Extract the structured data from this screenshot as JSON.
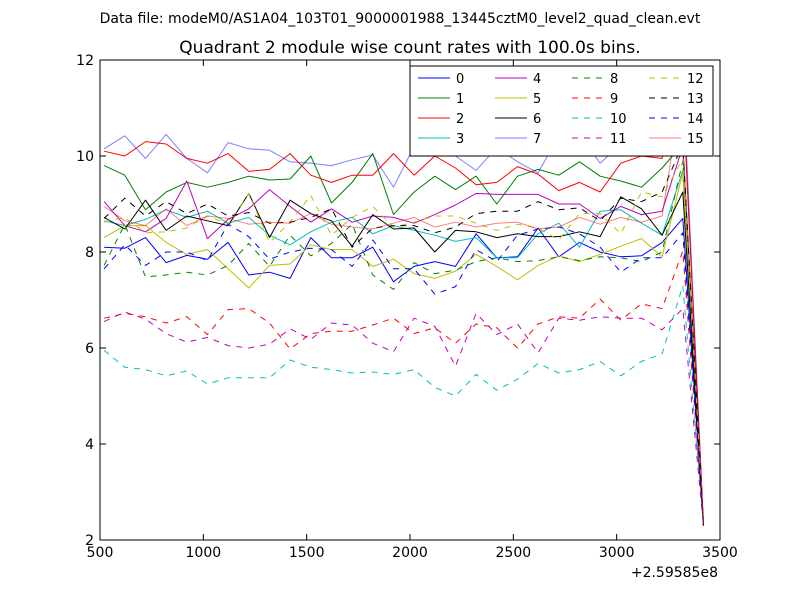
{
  "header": {
    "datafile": "Data file: modeM0/AS1A04_103T01_9000001988_13445cztM0_level2_quad_clean.evt"
  },
  "chart_data": {
    "type": "line",
    "title": "Quadrant 2 module wise count rates with 100.0s bins.",
    "xlabel": "",
    "ylabel": "",
    "x_offset_label": "+2.59585e8",
    "xlim": [
      500,
      3500
    ],
    "ylim": [
      2,
      12
    ],
    "xticks": [
      500,
      1000,
      1500,
      2000,
      2500,
      3000,
      3500
    ],
    "xtick_labels": [
      "500",
      "1000",
      "1500",
      "2000",
      "2500",
      "3000",
      "3500"
    ],
    "yticks": [
      2,
      4,
      6,
      8,
      10,
      12
    ],
    "ytick_labels": [
      "2",
      "4",
      "6",
      "8",
      "10",
      "12"
    ],
    "grid": false,
    "legend_position": "top-right",
    "legend_columns": 4,
    "x": [
      520,
      620,
      720,
      820,
      920,
      1020,
      1120,
      1220,
      1320,
      1420,
      1520,
      1620,
      1720,
      1820,
      1920,
      2020,
      2120,
      2220,
      2320,
      2420,
      2520,
      2620,
      2720,
      2820,
      2920,
      3020,
      3120,
      3220,
      3320,
      3420
    ],
    "series": [
      {
        "name": "0",
        "color": "#0000ff",
        "dash": "solid",
        "values": [
          8.1,
          8.08,
          8.3,
          7.78,
          7.93,
          7.85,
          8.2,
          7.52,
          7.58,
          7.45,
          8.3,
          7.88,
          7.88,
          8.1,
          7.38,
          7.7,
          7.8,
          7.7,
          8.38,
          7.88,
          7.9,
          8.5,
          7.9,
          8.2,
          8.0,
          7.9,
          7.92,
          8.2,
          8.7,
          2.3
        ]
      },
      {
        "name": "1",
        "color": "#008000",
        "dash": "solid",
        "values": [
          9.8,
          9.6,
          8.88,
          9.25,
          9.45,
          9.35,
          9.45,
          9.58,
          9.5,
          9.52,
          10.0,
          9.02,
          9.45,
          10.05,
          8.78,
          9.25,
          9.58,
          9.3,
          9.58,
          9.0,
          9.58,
          9.72,
          9.6,
          9.88,
          9.58,
          9.48,
          9.35,
          9.75,
          10.25,
          2.3
        ]
      },
      {
        "name": "2",
        "color": "#ff0000",
        "dash": "solid",
        "values": [
          10.1,
          10.0,
          10.3,
          10.25,
          9.95,
          9.85,
          10.05,
          9.68,
          9.72,
          10.05,
          9.6,
          9.45,
          9.6,
          9.6,
          10.05,
          9.6,
          10.0,
          9.75,
          9.4,
          9.45,
          9.78,
          9.62,
          9.28,
          9.45,
          9.25,
          9.85,
          10.0,
          9.95,
          11.35,
          2.3
        ]
      },
      {
        "name": "3",
        "color": "#00bfbf",
        "dash": "solid",
        "values": [
          8.65,
          8.55,
          8.68,
          8.88,
          8.72,
          8.85,
          8.6,
          8.72,
          8.35,
          8.15,
          8.42,
          8.62,
          8.72,
          8.38,
          8.55,
          8.45,
          8.35,
          8.22,
          8.3,
          7.88,
          7.88,
          8.38,
          8.6,
          8.1,
          8.85,
          8.88,
          8.6,
          8.35,
          9.7,
          2.3
        ]
      },
      {
        "name": "4",
        "color": "#bf00bf",
        "dash": "solid",
        "values": [
          9.05,
          8.55,
          8.42,
          8.7,
          9.48,
          8.28,
          8.68,
          8.9,
          9.3,
          8.95,
          8.62,
          8.9,
          8.62,
          8.75,
          8.72,
          8.6,
          8.78,
          8.98,
          9.22,
          9.2,
          9.2,
          9.2,
          9.0,
          9.0,
          8.7,
          8.95,
          8.78,
          8.85,
          10.2,
          2.3
        ]
      },
      {
        "name": "5",
        "color": "#bfbf00",
        "dash": "solid",
        "values": [
          8.3,
          8.55,
          8.55,
          8.2,
          7.95,
          8.05,
          7.65,
          7.25,
          7.72,
          7.75,
          8.15,
          8.05,
          8.05,
          7.7,
          7.85,
          7.55,
          7.45,
          7.6,
          7.95,
          7.7,
          7.42,
          7.72,
          7.92,
          7.8,
          7.95,
          8.12,
          8.28,
          7.9,
          9.65,
          2.3
        ]
      },
      {
        "name": "6",
        "color": "#000000",
        "dash": "solid",
        "values": [
          8.72,
          8.48,
          9.08,
          8.45,
          8.75,
          8.65,
          8.55,
          9.22,
          8.3,
          9.08,
          8.8,
          8.65,
          8.12,
          8.78,
          8.48,
          8.5,
          8.0,
          8.45,
          8.42,
          8.3,
          8.38,
          8.32,
          8.32,
          8.42,
          8.32,
          9.15,
          8.9,
          8.35,
          9.25,
          2.3
        ]
      },
      {
        "name": "7",
        "color": "#0000ff",
        "dash": "solid",
        "alpha": 0.5,
        "values": [
          10.15,
          10.42,
          9.95,
          10.45,
          9.95,
          9.65,
          10.28,
          10.15,
          10.12,
          9.88,
          9.85,
          9.8,
          9.92,
          10.02,
          9.35,
          10.2,
          10.0,
          10.0,
          9.7,
          10.18,
          9.88,
          9.65,
          10.42,
          10.45,
          9.85,
          10.25,
          10.0,
          10.55,
          11.75,
          2.3
        ]
      },
      {
        "name": "8",
        "color": "#008000",
        "dash": "dashed",
        "values": [
          7.72,
          8.58,
          7.48,
          7.52,
          7.58,
          7.52,
          7.72,
          8.18,
          7.7,
          8.35,
          7.92,
          8.18,
          8.58,
          7.52,
          7.22,
          7.78,
          7.55,
          7.62,
          7.8,
          7.88,
          7.8,
          7.82,
          7.9,
          7.82,
          7.9,
          7.88,
          7.8,
          8.0,
          9.9,
          2.3
        ]
      },
      {
        "name": "9",
        "color": "#ff0000",
        "dash": "dashed",
        "values": [
          6.62,
          6.72,
          6.65,
          6.52,
          6.65,
          6.28,
          6.8,
          6.82,
          6.52,
          5.98,
          6.3,
          6.35,
          6.35,
          6.48,
          6.62,
          6.3,
          6.42,
          6.1,
          6.5,
          6.42,
          6.0,
          6.5,
          6.65,
          6.62,
          7.02,
          6.58,
          6.92,
          6.82,
          8.02,
          2.3
        ]
      },
      {
        "name": "10",
        "color": "#00bfbf",
        "dash": "dashed",
        "values": [
          5.95,
          5.6,
          5.55,
          5.42,
          5.52,
          5.25,
          5.38,
          5.38,
          5.38,
          5.75,
          5.6,
          5.55,
          5.48,
          5.5,
          5.45,
          5.55,
          5.18,
          5.0,
          5.45,
          5.12,
          5.35,
          5.68,
          5.48,
          5.55,
          5.72,
          5.42,
          5.72,
          5.88,
          7.3,
          2.3
        ]
      },
      {
        "name": "11",
        "color": "#bf00bf",
        "dash": "dashed",
        "values": [
          6.55,
          6.75,
          6.6,
          6.3,
          6.12,
          6.22,
          6.05,
          6.0,
          6.08,
          6.4,
          6.18,
          6.52,
          6.48,
          6.1,
          5.92,
          6.62,
          6.45,
          5.62,
          6.72,
          6.28,
          6.5,
          5.9,
          6.62,
          6.58,
          6.65,
          6.62,
          6.62,
          6.38,
          6.82,
          2.3
        ]
      },
      {
        "name": "12",
        "color": "#bfbf00",
        "dash": "dashed",
        "values": [
          8.62,
          8.72,
          8.4,
          8.42,
          8.5,
          8.75,
          8.58,
          9.22,
          8.2,
          8.62,
          9.18,
          8.35,
          8.72,
          8.95,
          8.52,
          8.62,
          8.75,
          8.75,
          8.6,
          8.45,
          8.58,
          8.5,
          8.25,
          8.8,
          8.8,
          8.38,
          9.25,
          9.15,
          9.95,
          2.3
        ]
      },
      {
        "name": "13",
        "color": "#000000",
        "dash": "dashed",
        "values": [
          8.7,
          9.12,
          8.75,
          9.05,
          8.8,
          9.0,
          8.75,
          8.82,
          8.6,
          8.62,
          8.72,
          8.9,
          8.1,
          8.5,
          8.55,
          8.55,
          8.4,
          8.52,
          8.8,
          8.85,
          8.85,
          9.05,
          8.88,
          8.92,
          8.65,
          9.12,
          9.05,
          9.25,
          10.25,
          2.3
        ]
      },
      {
        "name": "14",
        "color": "#0000ff",
        "dash": "dashed",
        "values": [
          7.65,
          8.15,
          7.72,
          8.0,
          8.0,
          7.82,
          8.58,
          8.32,
          7.85,
          8.0,
          8.08,
          8.05,
          7.7,
          8.25,
          7.65,
          7.65,
          7.12,
          7.28,
          8.05,
          7.8,
          8.35,
          8.48,
          8.52,
          8.38,
          8.1,
          7.58,
          7.88,
          7.88,
          8.4,
          2.3
        ]
      },
      {
        "name": "15",
        "color": "#ff0000",
        "dash": "solid",
        "alpha": 0.5,
        "values": [
          8.95,
          8.65,
          8.55,
          8.9,
          8.55,
          8.75,
          8.7,
          8.58,
          8.62,
          8.6,
          8.8,
          8.58,
          8.52,
          8.48,
          8.6,
          8.72,
          8.52,
          8.62,
          8.52,
          8.6,
          8.62,
          8.48,
          8.52,
          8.72,
          8.58,
          8.72,
          8.62,
          8.75,
          11.5,
          2.3
        ]
      }
    ]
  }
}
